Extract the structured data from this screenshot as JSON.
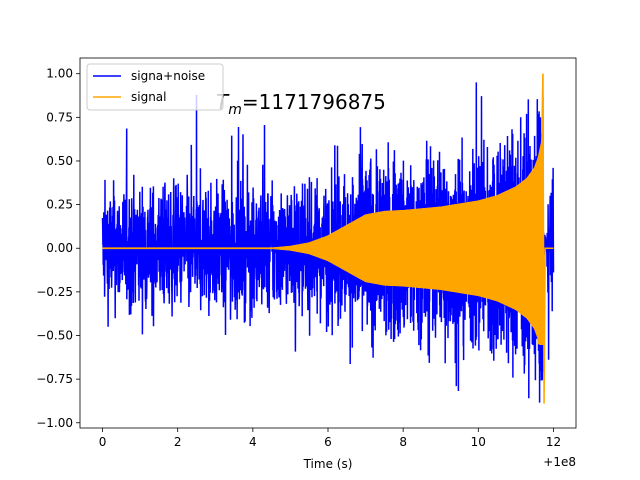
{
  "chart_data": {
    "type": "line",
    "title": "",
    "xlabel": "Time (s)",
    "ylabel": "",
    "x_offset_label": "+1e8",
    "xlim": [
      -0.6,
      12.6
    ],
    "ylim": [
      -1.03,
      1.09
    ],
    "x_ticks": [
      0,
      2,
      4,
      6,
      8,
      10,
      12
    ],
    "x_tick_labels": [
      "0",
      "2",
      "4",
      "6",
      "8",
      "10",
      "12"
    ],
    "y_ticks": [
      -1.0,
      -0.75,
      -0.5,
      -0.25,
      0.0,
      0.25,
      0.5,
      0.75,
      1.0
    ],
    "y_tick_labels": [
      "−1.00",
      "−0.75",
      "−0.50",
      "−0.25",
      "0.00",
      "0.25",
      "0.50",
      "0.75",
      "1.00"
    ],
    "grid": false,
    "legend_position": "top-left",
    "annotation": {
      "symbol": "T",
      "subscript": "m",
      "text": "=1171796875"
    },
    "series": [
      {
        "name": "signa+noise",
        "color": "#0000ff",
        "description_values": {
          "x_start": 0.0,
          "x_end": 12.0,
          "noise_typical_amplitude": 0.45,
          "max_peak": 0.95,
          "min_peak": -0.92
        }
      },
      {
        "name": "signal",
        "color": "#ffa500",
        "envelope": {
          "x": [
            0,
            4.5,
            5.0,
            5.5,
            6.0,
            6.5,
            7.0,
            7.5,
            8.0,
            9.0,
            10.0,
            10.5,
            11.0,
            11.3,
            11.5,
            11.6,
            11.7,
            11.72
          ],
          "y": [
            0.0,
            0.0,
            0.01,
            0.03,
            0.07,
            0.13,
            0.19,
            0.21,
            0.215,
            0.235,
            0.27,
            0.3,
            0.35,
            0.4,
            0.46,
            0.52,
            0.62,
            1.0
          ]
        },
        "ringdown_min": -0.89,
        "end_x": 12.0
      }
    ]
  }
}
